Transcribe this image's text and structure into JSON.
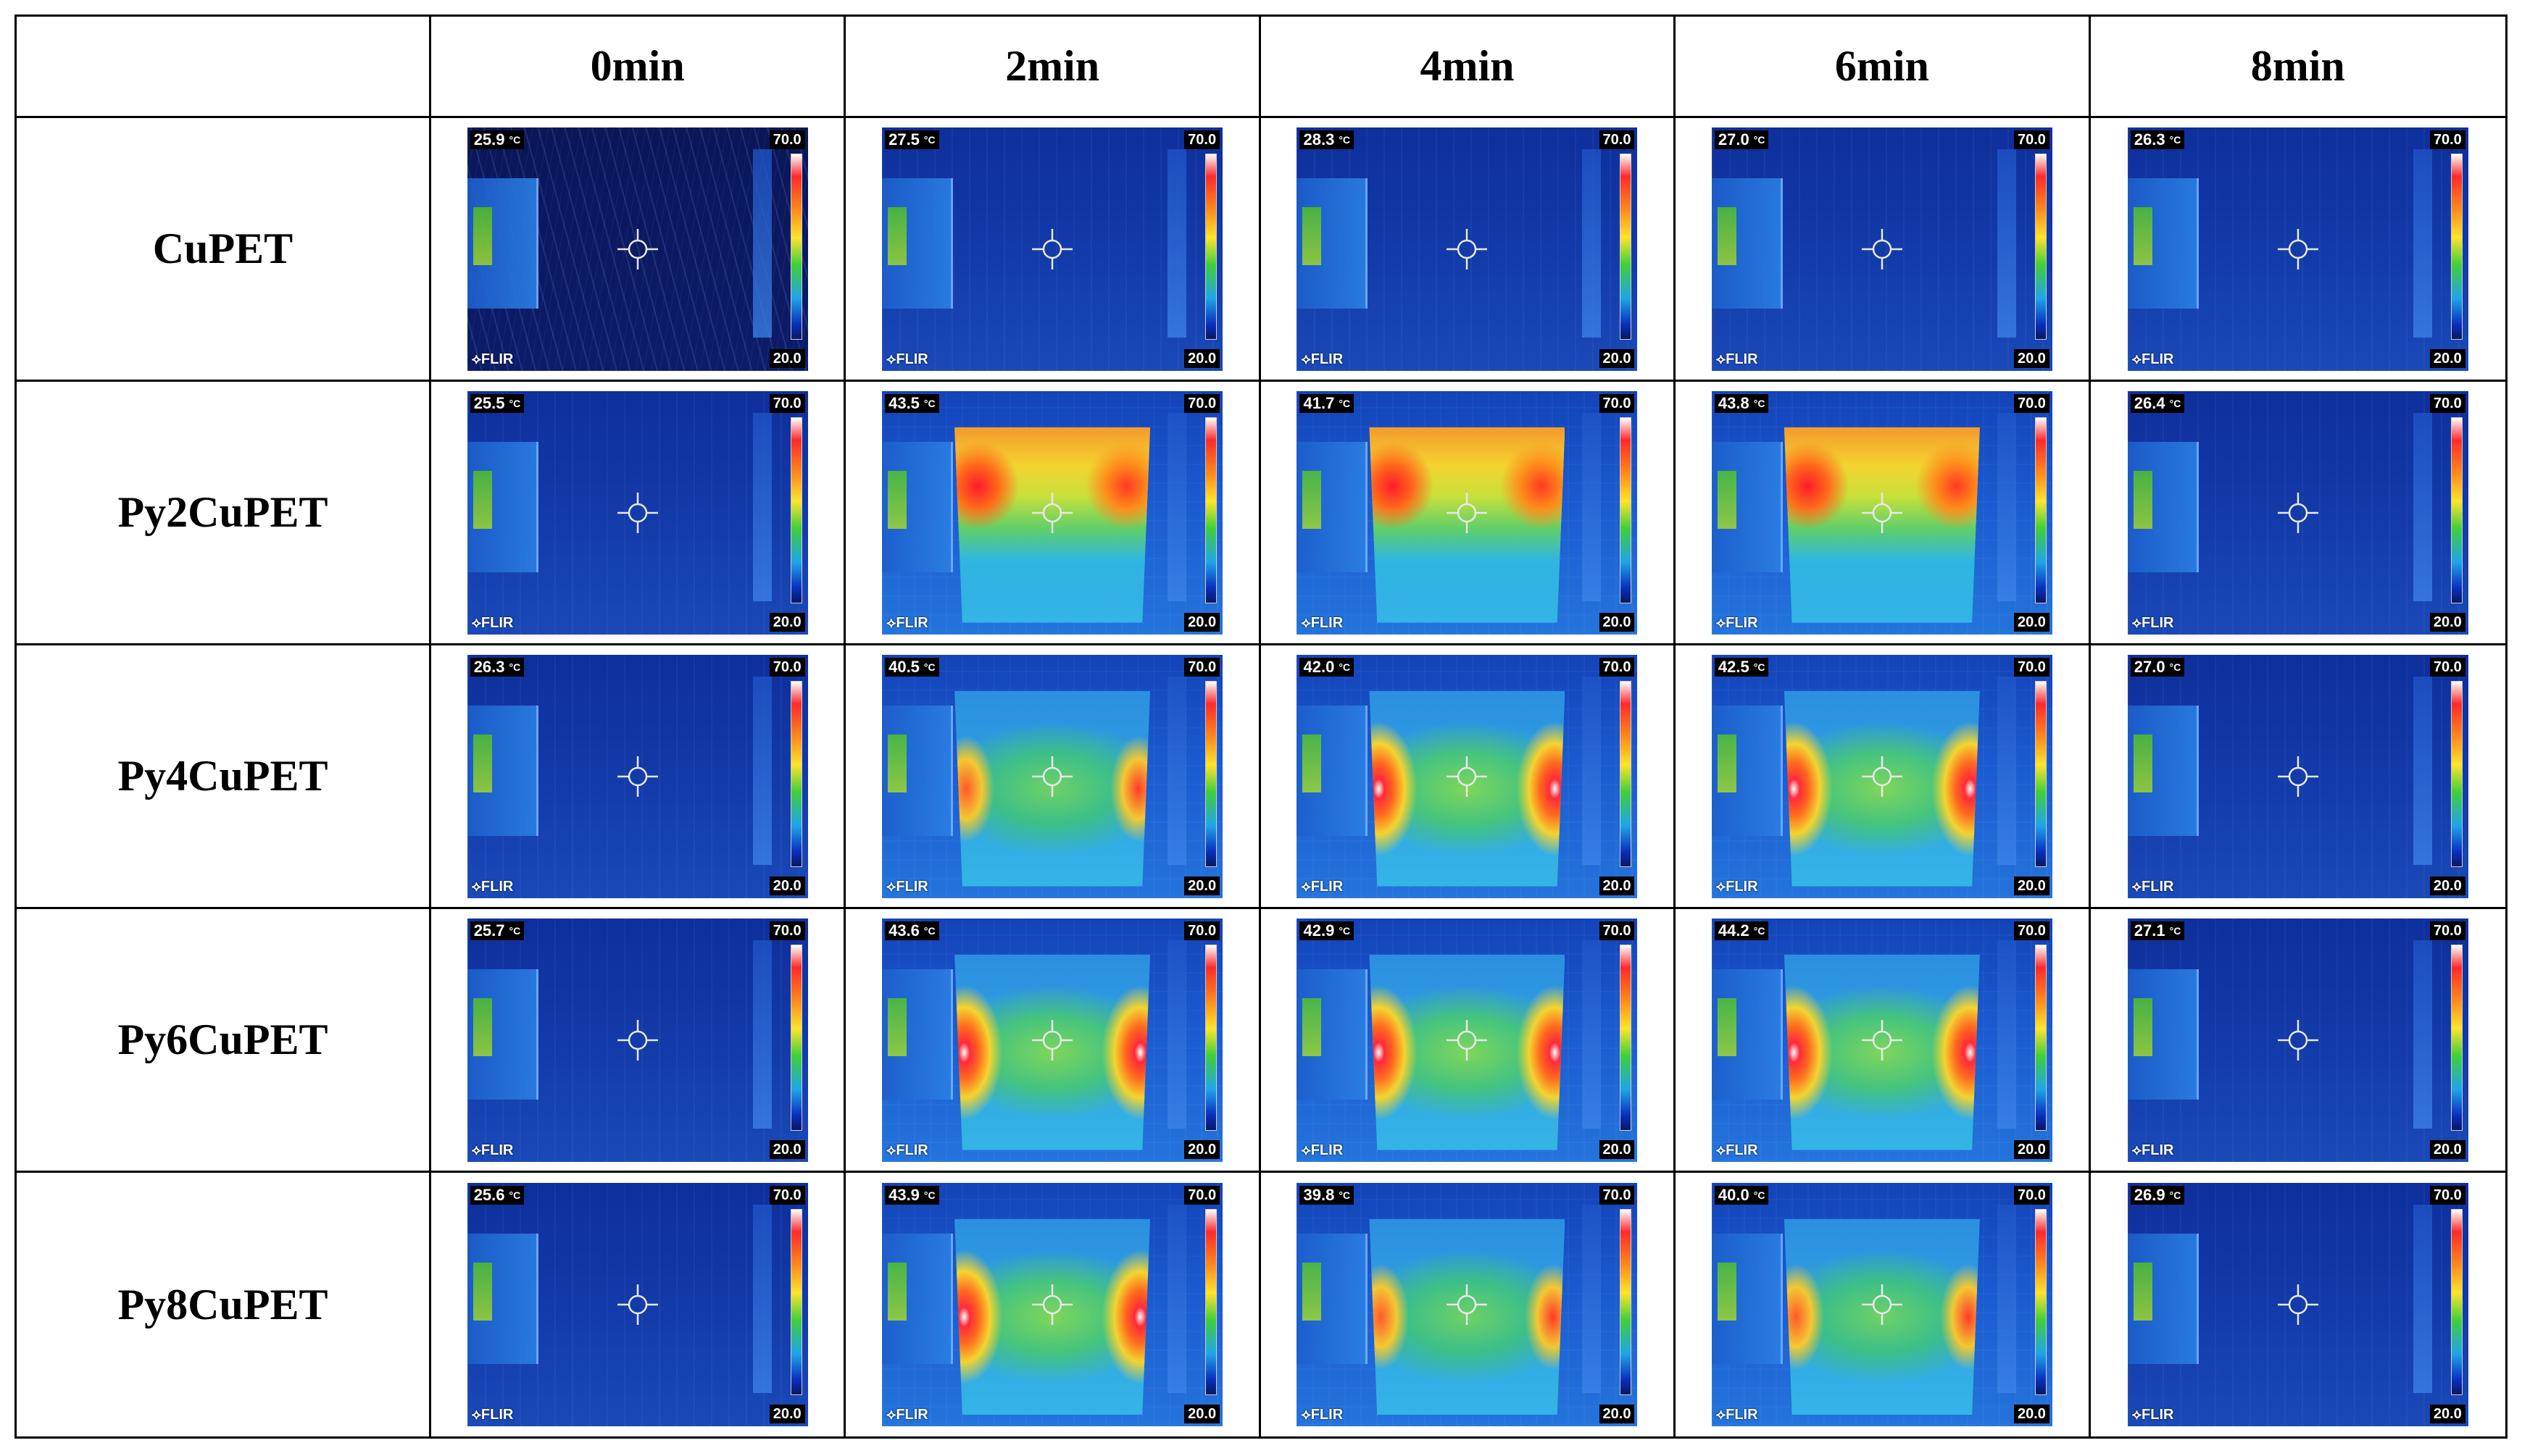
{
  "columns": [
    "",
    "0min",
    "2min",
    "4min",
    "6min",
    "8min"
  ],
  "rows": [
    {
      "label": "CuPET",
      "images": [
        {
          "temp": "25.9",
          "pattern": "dark"
        },
        {
          "temp": "27.5",
          "pattern": "cold"
        },
        {
          "temp": "28.3",
          "pattern": "cold"
        },
        {
          "temp": "27.0",
          "pattern": "cold"
        },
        {
          "temp": "26.3",
          "pattern": "cold"
        }
      ]
    },
    {
      "label": "Py2CuPET",
      "images": [
        {
          "temp": "25.5",
          "pattern": "cold"
        },
        {
          "temp": "43.5",
          "pattern": "band"
        },
        {
          "temp": "41.7",
          "pattern": "band"
        },
        {
          "temp": "43.8",
          "pattern": "band"
        },
        {
          "temp": "26.4",
          "pattern": "cold"
        }
      ]
    },
    {
      "label": "Py4CuPET",
      "images": [
        {
          "temp": "26.3",
          "pattern": "cold"
        },
        {
          "temp": "40.5",
          "pattern": "sides-mild"
        },
        {
          "temp": "42.0",
          "pattern": "sides"
        },
        {
          "temp": "42.5",
          "pattern": "sides"
        },
        {
          "temp": "27.0",
          "pattern": "cold"
        }
      ]
    },
    {
      "label": "Py6CuPET",
      "images": [
        {
          "temp": "25.7",
          "pattern": "cold"
        },
        {
          "temp": "43.6",
          "pattern": "sides"
        },
        {
          "temp": "42.9",
          "pattern": "sides"
        },
        {
          "temp": "44.2",
          "pattern": "sides"
        },
        {
          "temp": "27.1",
          "pattern": "cold"
        }
      ]
    },
    {
      "label": "Py8CuPET",
      "images": [
        {
          "temp": "25.6",
          "pattern": "cold"
        },
        {
          "temp": "43.9",
          "pattern": "sides"
        },
        {
          "temp": "39.8",
          "pattern": "sides-mild"
        },
        {
          "temp": "40.0",
          "pattern": "sides-mild"
        },
        {
          "temp": "26.9",
          "pattern": "cold"
        }
      ]
    }
  ],
  "thermal": {
    "unit": "°C",
    "scale_max": "70.0",
    "scale_min": "20.0",
    "brand": "⟡FLIR"
  }
}
